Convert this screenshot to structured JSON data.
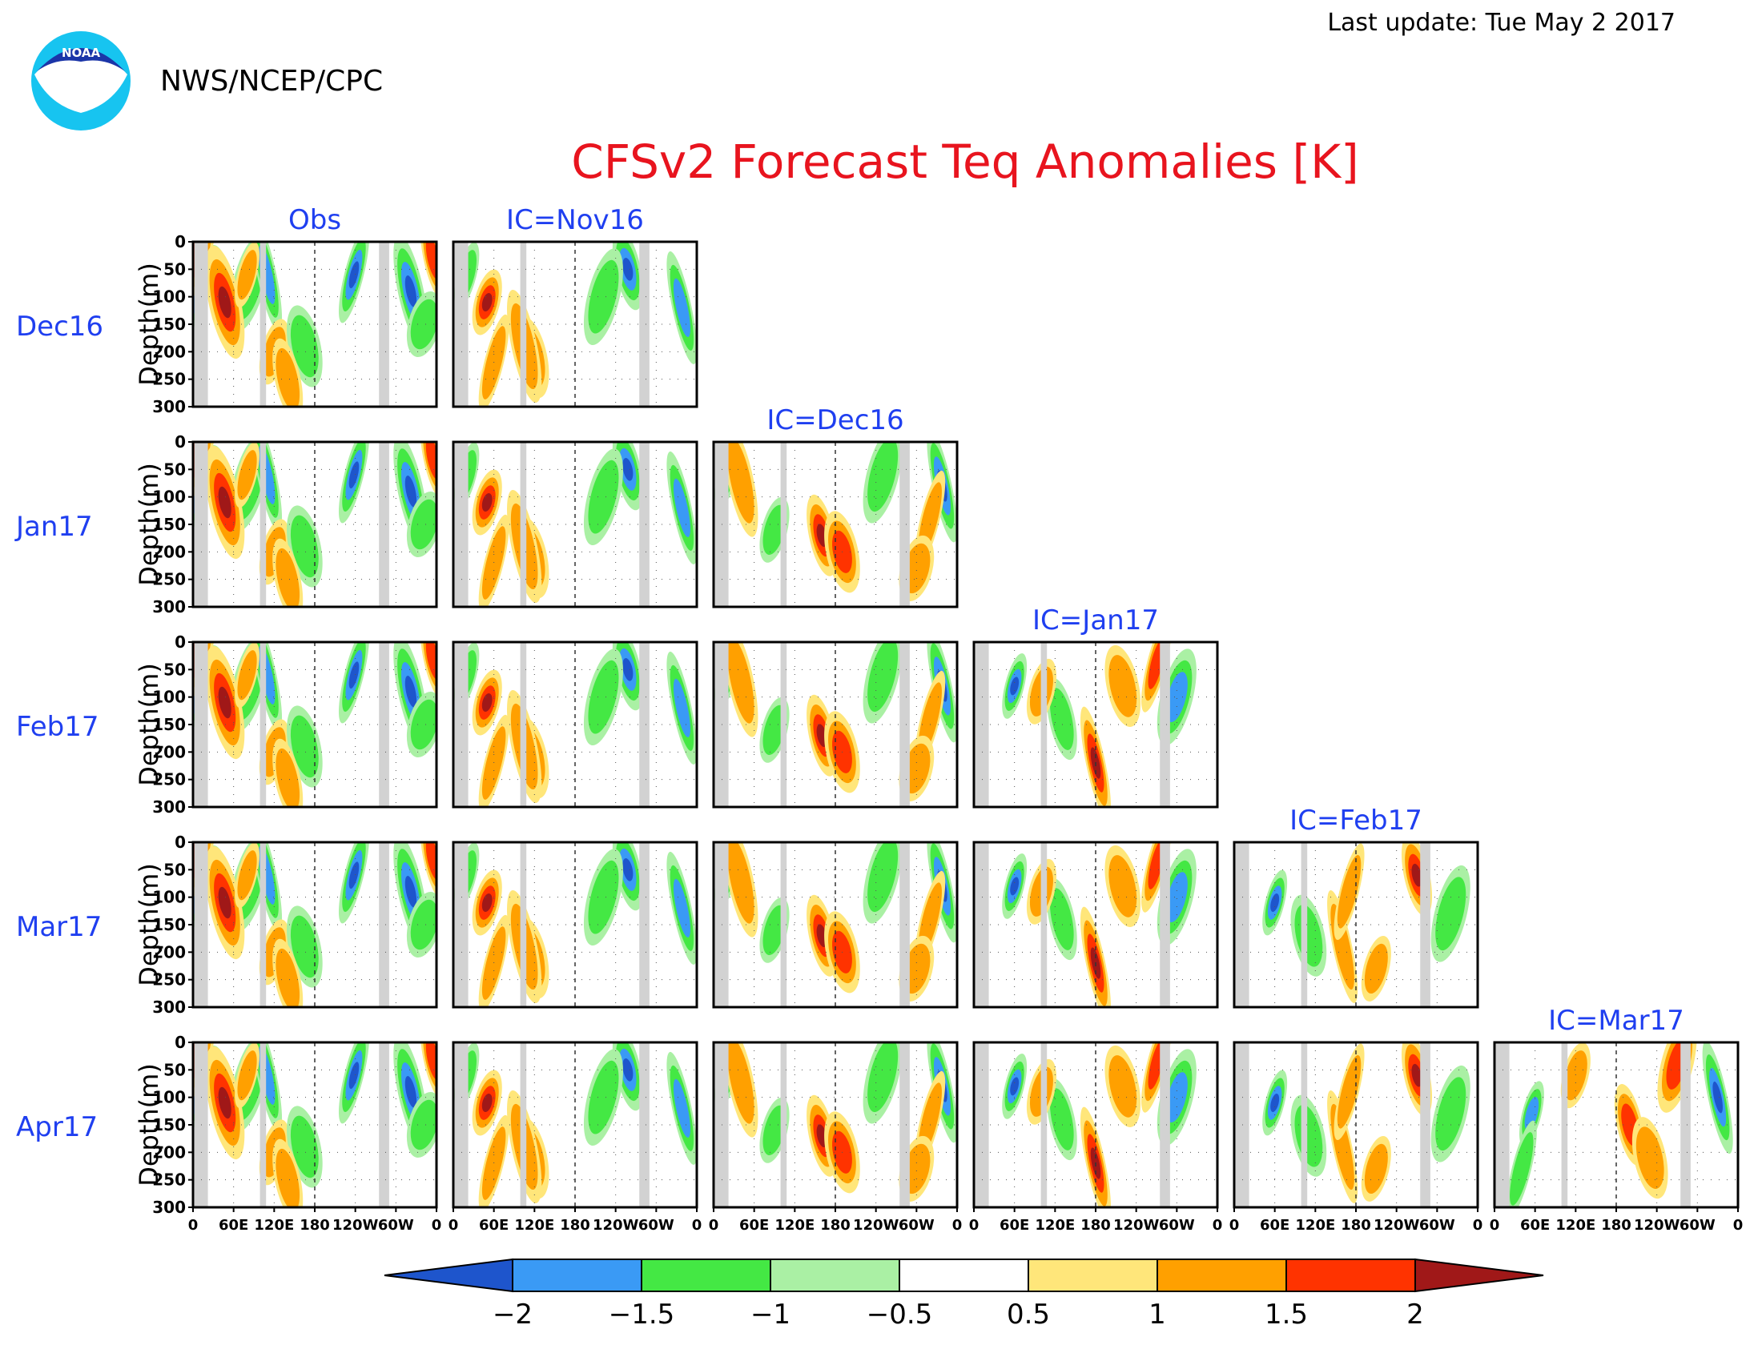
{
  "header": {
    "last_update": "Last update: Tue May 2 2017",
    "agency": "NWS/NCEP/CPC",
    "logo_text": "NOAA"
  },
  "chart_data": {
    "type": "heatmap",
    "title": "CFSv2 Forecast Teq Anomalies [K]",
    "column_labels": [
      "Obs",
      "IC=Nov16",
      "IC=Dec16",
      "IC=Jan17",
      "IC=Feb17",
      "IC=Mar17"
    ],
    "row_labels": [
      "Dec16",
      "Jan17",
      "Feb17",
      "Mar17",
      "Apr17"
    ],
    "ylabel": "Depth(m)",
    "y_ticks": [
      "0",
      "50",
      "100",
      "150",
      "200",
      "250",
      "300"
    ],
    "x_ticks": [
      "0",
      "60E",
      "120E",
      "180",
      "120W",
      "60W",
      "0"
    ],
    "ylim": [
      300,
      0
    ],
    "xlim": [
      0,
      360
    ],
    "colorbar": {
      "tick_labels": [
        "−2",
        "−1.5",
        "−1",
        "−0.5",
        "0.5",
        "1",
        "1.5",
        "2"
      ],
      "colors": [
        "#1e55cc",
        "#3a9af5",
        "#44e844",
        "#aaf0a4",
        "#ffffff",
        "#ffe67a",
        "#ffa000",
        "#ff3300",
        "#a01818"
      ]
    },
    "colors": {
      "land": "#d2d2d2",
      "neg_strong": "#1e55cc",
      "neg_mid": "#3a9af5",
      "neg_weak": "#44e844",
      "neg_faint": "#aaf0a4",
      "pos_faint": "#ffe67a",
      "pos_weak": "#ffa000",
      "pos_mid": "#ff3300",
      "pos_strong": "#a01818"
    },
    "land_bands_lon": [
      [
        2,
        22
      ],
      [
        99,
        108
      ],
      [
        275,
        290
      ]
    ],
    "features": {
      "obs": [
        [
          6,
          100,
          -1.5
        ],
        [
          42,
          80,
          -1
        ],
        [
          83,
          75,
          -1
        ],
        [
          109,
          60,
          -1.5
        ],
        [
          120,
          200,
          1
        ],
        [
          165,
          190,
          -1
        ],
        [
          238,
          60,
          -2
        ],
        [
          322,
          90,
          -2
        ],
        [
          342,
          150,
          -1
        ],
        [
          355,
          30,
          1.5
        ],
        [
          8,
          20,
          1.5
        ],
        [
          47,
          110,
          2
        ],
        [
          80,
          60,
          1
        ],
        [
          140,
          250,
          1
        ]
      ],
      "fc1": [
        [
          20,
          60,
          -1
        ],
        [
          258,
          50,
          -2
        ],
        [
          222,
          100,
          -1
        ],
        [
          338,
          120,
          -1.5
        ],
        [
          50,
          110,
          2
        ],
        [
          115,
          210,
          1
        ],
        [
          60,
          220,
          1
        ],
        [
          105,
          190,
          1
        ]
      ],
      "fc2": [
        [
          20,
          60,
          -1
        ],
        [
          160,
          170,
          2
        ],
        [
          250,
          60,
          -1
        ],
        [
          338,
          80,
          -2
        ],
        [
          90,
          160,
          -1
        ],
        [
          190,
          200,
          1.5
        ],
        [
          320,
          140,
          1
        ],
        [
          40,
          70,
          1
        ],
        [
          300,
          230,
          1
        ]
      ],
      "fc3": [
        [
          60,
          80,
          -2
        ],
        [
          130,
          140,
          -1
        ],
        [
          300,
          100,
          -1.5
        ],
        [
          180,
          220,
          2
        ],
        [
          100,
          90,
          1
        ],
        [
          220,
          80,
          1
        ],
        [
          270,
          40,
          1.5
        ]
      ],
      "fc4": [
        [
          60,
          110,
          -2
        ],
        [
          270,
          60,
          2
        ],
        [
          320,
          130,
          -1
        ],
        [
          160,
          190,
          1
        ],
        [
          210,
          230,
          1
        ],
        [
          110,
          170,
          -1
        ],
        [
          170,
          90,
          1
        ]
      ],
      "fc5": [
        [
          55,
          130,
          -1.5
        ],
        [
          200,
          150,
          1.5
        ],
        [
          270,
          40,
          1.5
        ],
        [
          330,
          100,
          -2
        ],
        [
          120,
          60,
          1
        ],
        [
          230,
          210,
          1
        ],
        [
          40,
          230,
          -1
        ]
      ]
    },
    "panels": [
      {
        "row": 0,
        "col": 0,
        "data": "obs"
      },
      {
        "row": 0,
        "col": 1,
        "data": "fc1"
      },
      {
        "row": 1,
        "col": 0,
        "data": "obs"
      },
      {
        "row": 1,
        "col": 1,
        "data": "fc1"
      },
      {
        "row": 1,
        "col": 2,
        "data": "fc2"
      },
      {
        "row": 2,
        "col": 0,
        "data": "obs"
      },
      {
        "row": 2,
        "col": 1,
        "data": "fc1"
      },
      {
        "row": 2,
        "col": 2,
        "data": "fc2"
      },
      {
        "row": 2,
        "col": 3,
        "data": "fc3"
      },
      {
        "row": 3,
        "col": 0,
        "data": "obs"
      },
      {
        "row": 3,
        "col": 1,
        "data": "fc1"
      },
      {
        "row": 3,
        "col": 2,
        "data": "fc2"
      },
      {
        "row": 3,
        "col": 3,
        "data": "fc3"
      },
      {
        "row": 3,
        "col": 4,
        "data": "fc4"
      },
      {
        "row": 4,
        "col": 0,
        "data": "obs"
      },
      {
        "row": 4,
        "col": 1,
        "data": "fc1"
      },
      {
        "row": 4,
        "col": 2,
        "data": "fc2"
      },
      {
        "row": 4,
        "col": 3,
        "data": "fc3"
      },
      {
        "row": 4,
        "col": 4,
        "data": "fc4"
      },
      {
        "row": 4,
        "col": 5,
        "data": "fc5"
      }
    ]
  }
}
